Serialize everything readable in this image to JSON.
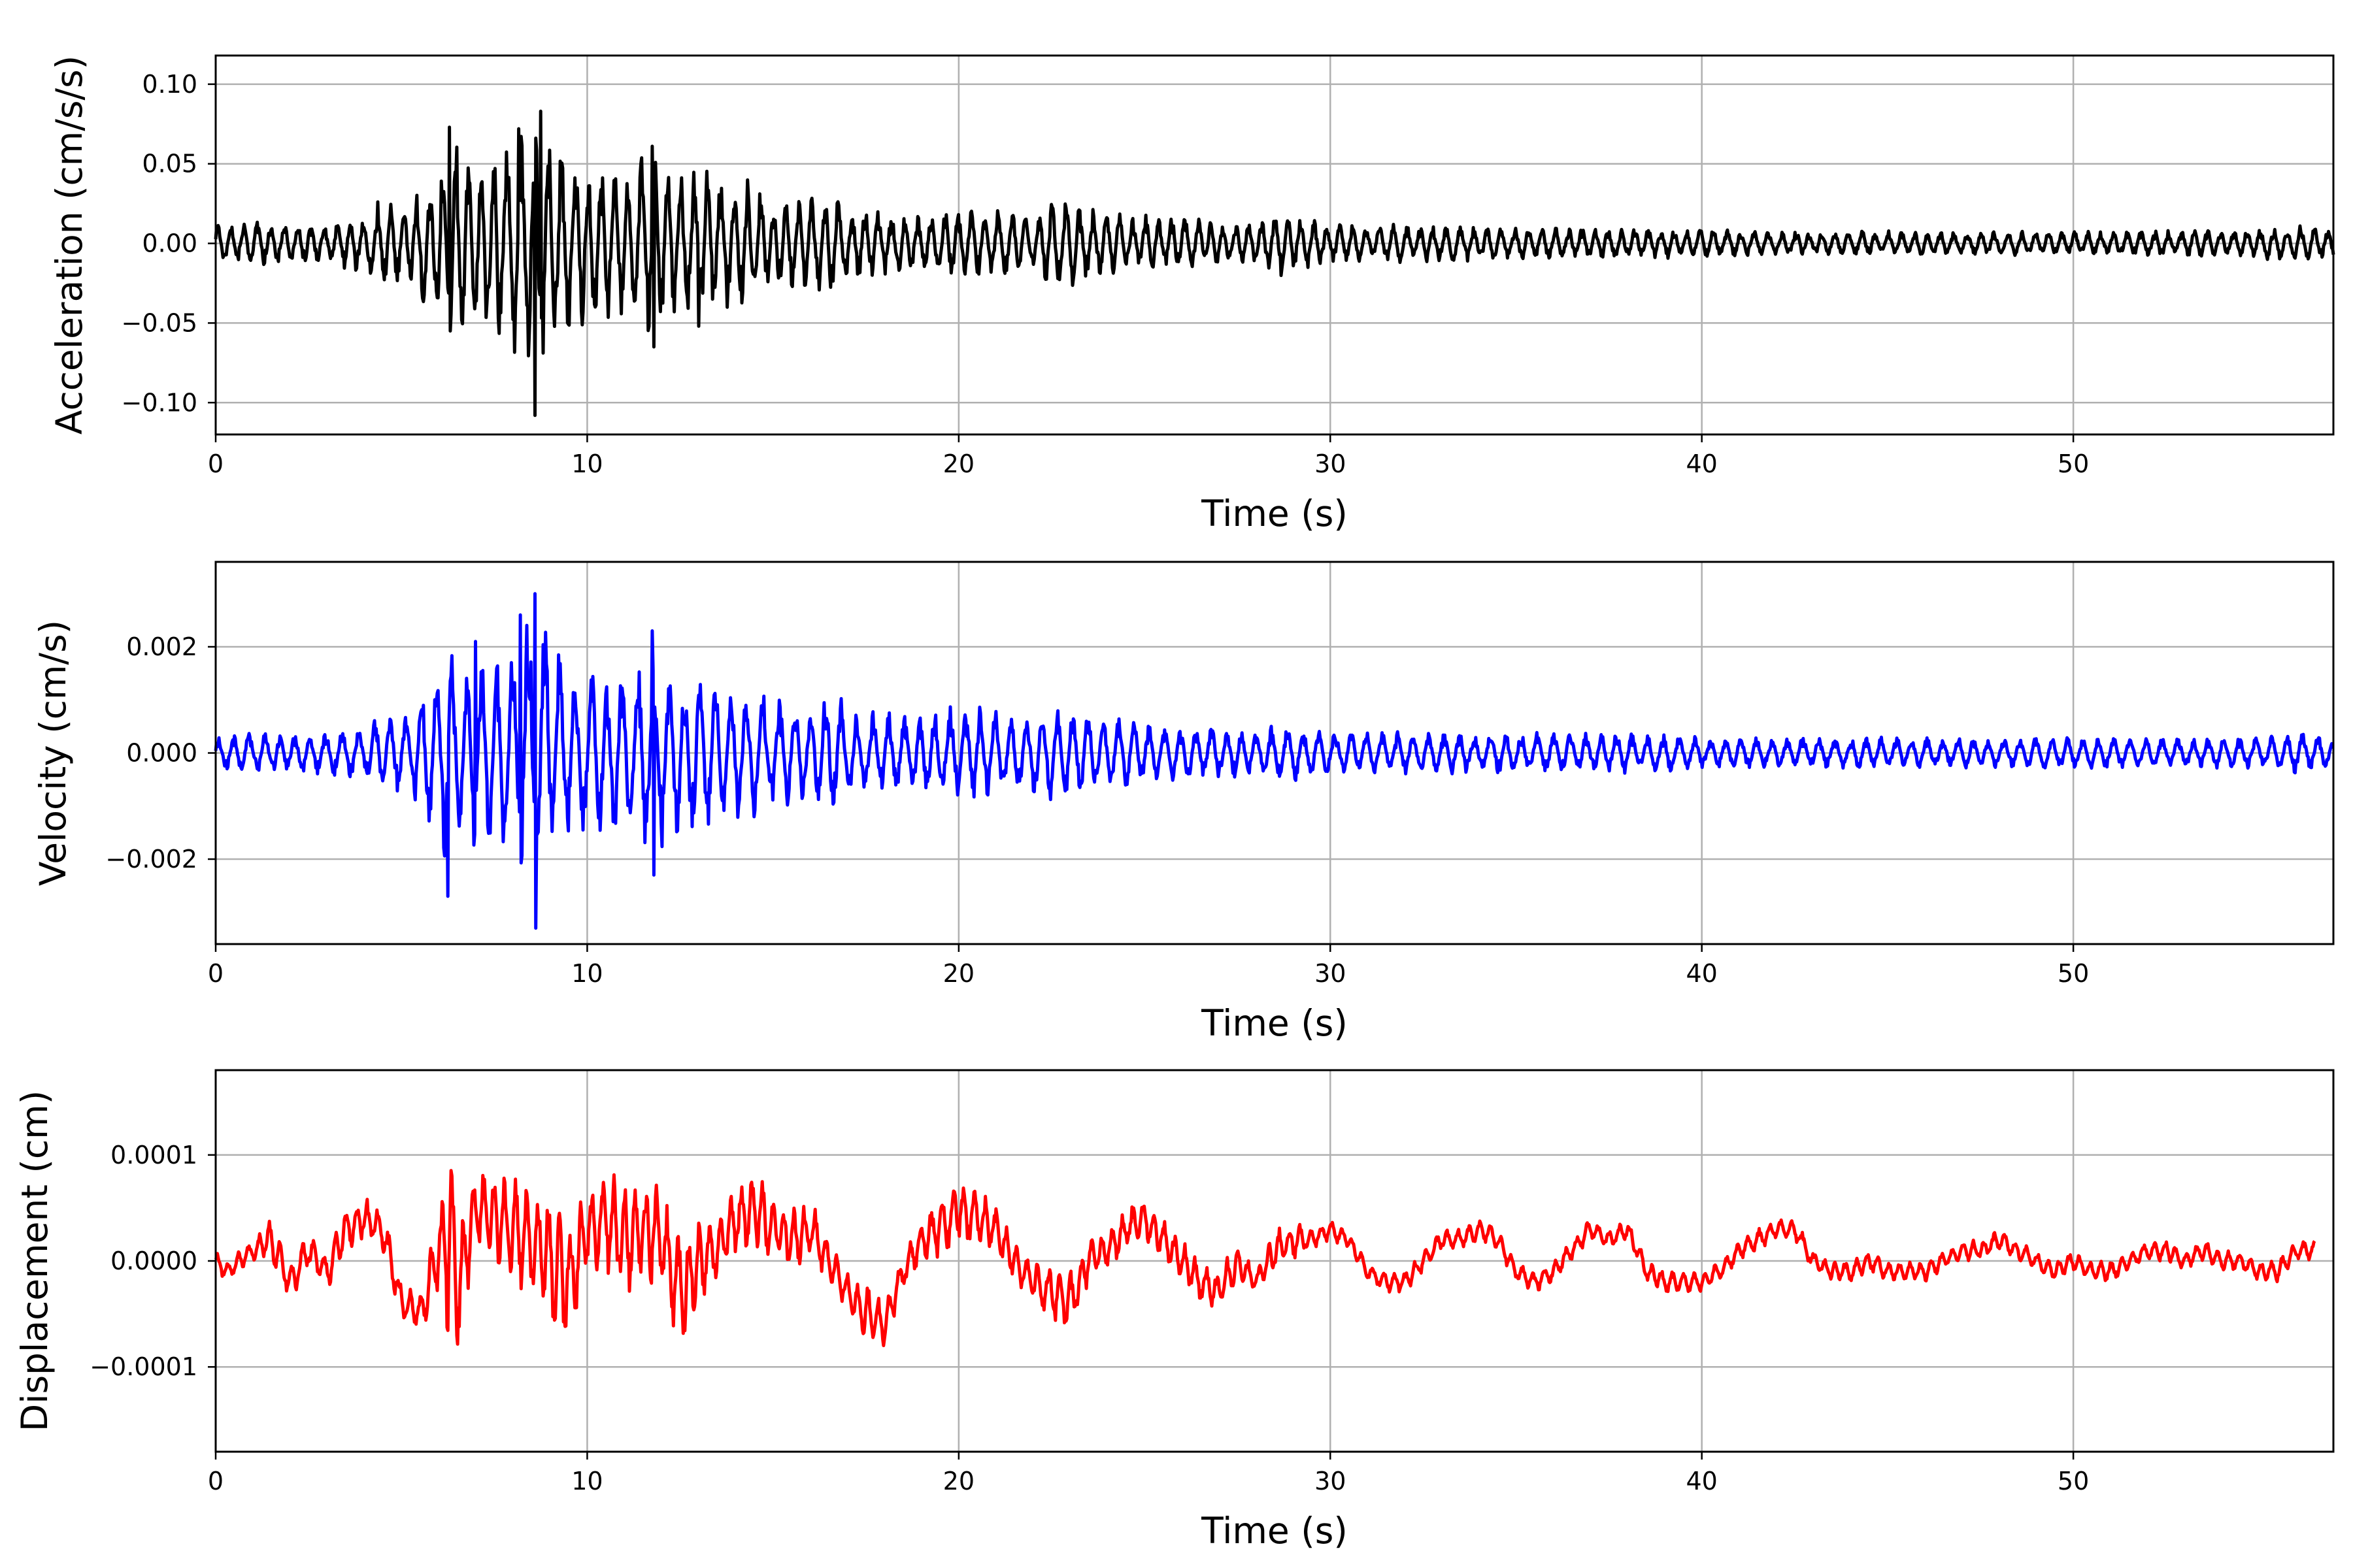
{
  "chart_data": [
    {
      "type": "line",
      "title": "",
      "xlabel": "Time (s)",
      "ylabel": "Acceleration (cm/s/s)",
      "xlim": [
        0,
        57
      ],
      "ylim": [
        -0.12,
        0.118
      ],
      "xticks": [
        0,
        10,
        20,
        30,
        40,
        50
      ],
      "xtick_labels": [
        "0",
        "10",
        "20",
        "30",
        "40",
        "50"
      ],
      "yticks": [
        -0.1,
        -0.05,
        0.0,
        0.05,
        0.1
      ],
      "ytick_labels": [
        "−0.10",
        "−0.05",
        "0.00",
        "0.05",
        "0.10"
      ],
      "grid": true,
      "series": [
        {
          "color": "#000000",
          "x": [
            0,
            1,
            2,
            3,
            4,
            4.5,
            5,
            6,
            6.3,
            6.5,
            7,
            7.5,
            8,
            8.3,
            8.6,
            9,
            9.5,
            10,
            10.5,
            11,
            11.8,
            12.5,
            13,
            14,
            14.5,
            15,
            16,
            16.5,
            17,
            18,
            19,
            20,
            21,
            22,
            22.5,
            23,
            23.5,
            24,
            25,
            26,
            27,
            28,
            28.6,
            30,
            32,
            34,
            36,
            38,
            40,
            42,
            44,
            46,
            48,
            50,
            52,
            54,
            55,
            56,
            57
          ],
          "envelope": [
            0.012,
            0.014,
            0.013,
            0.012,
            0.02,
            0.03,
            0.025,
            0.05,
            0.07,
            0.065,
            0.06,
            0.07,
            0.075,
            0.08,
            0.1,
            0.075,
            0.06,
            0.05,
            0.05,
            0.045,
            0.065,
            0.045,
            0.05,
            0.04,
            0.04,
            0.03,
            0.03,
            0.035,
            0.025,
            0.02,
            0.018,
            0.022,
            0.022,
            0.02,
            0.028,
            0.028,
            0.022,
            0.02,
            0.018,
            0.016,
            0.015,
            0.013,
            0.022,
            0.012,
            0.012,
            0.011,
            0.01,
            0.01,
            0.009,
            0.008,
            0.008,
            0.008,
            0.008,
            0.008,
            0.008,
            0.009,
            0.01,
            0.012,
            0.01
          ],
          "frequency_hz": 2.8,
          "peaks": [
            [
              6.3,
              0.073
            ],
            [
              8.15,
              0.072
            ],
            [
              8.6,
              -0.108
            ],
            [
              8.75,
              0.083
            ],
            [
              11.8,
              -0.065
            ],
            [
              11.75,
              0.061
            ],
            [
              6.3,
              -0.055
            ],
            [
              13.0,
              -0.052
            ]
          ]
        }
      ]
    },
    {
      "type": "line",
      "title": "",
      "xlabel": "Time (s)",
      "ylabel": "Velocity (cm/s)",
      "xlim": [
        0,
        57
      ],
      "ylim": [
        -0.0036,
        0.0036
      ],
      "xticks": [
        0,
        10,
        20,
        30,
        40,
        50
      ],
      "xtick_labels": [
        "0",
        "10",
        "20",
        "30",
        "40",
        "50"
      ],
      "yticks": [
        -0.002,
        0.0,
        0.002
      ],
      "ytick_labels": [
        "−0.002",
        "0.000",
        "0.002"
      ],
      "grid": true,
      "series": [
        {
          "color": "#0000ff",
          "x": [
            0,
            1,
            2,
            3,
            4,
            4.5,
            5,
            6,
            6.3,
            6.5,
            7,
            7.5,
            8,
            8.3,
            8.6,
            9,
            9.5,
            10,
            10.5,
            11,
            11.8,
            12.5,
            13,
            14,
            14.5,
            15,
            16,
            16.5,
            17,
            18,
            19,
            20,
            21,
            22,
            22.5,
            23,
            23.5,
            24,
            25,
            26,
            27,
            28,
            28.6,
            30,
            32,
            34,
            36,
            38,
            40,
            42,
            44,
            46,
            48,
            50,
            52,
            54,
            55,
            56,
            57
          ],
          "envelope": [
            0.0003,
            0.0004,
            0.0004,
            0.0004,
            0.0005,
            0.0008,
            0.0008,
            0.0015,
            0.0024,
            0.0016,
            0.0018,
            0.0019,
            0.0022,
            0.0027,
            0.0031,
            0.0022,
            0.0018,
            0.0015,
            0.0016,
            0.0015,
            0.002,
            0.0015,
            0.0016,
            0.0013,
            0.0013,
            0.0011,
            0.0011,
            0.0013,
            0.0009,
            0.0008,
            0.0008,
            0.0009,
            0.0009,
            0.0008,
            0.0009,
            0.0009,
            0.0008,
            0.0007,
            0.0006,
            0.0005,
            0.0005,
            0.0004,
            0.0006,
            0.0004,
            0.0004,
            0.0004,
            0.0004,
            0.0004,
            0.0003,
            0.0003,
            0.0003,
            0.0003,
            0.0003,
            0.0003,
            0.0003,
            0.0003,
            0.0003,
            0.0004,
            0.0003
          ],
          "frequency_hz": 2.4,
          "peaks": [
            [
              8.6,
              0.003
            ],
            [
              8.6,
              -0.0033
            ],
            [
              6.3,
              -0.0027
            ],
            [
              11.75,
              0.0023
            ],
            [
              11.8,
              -0.0023
            ],
            [
              8.2,
              0.0026
            ],
            [
              7.0,
              0.0021
            ]
          ]
        }
      ]
    },
    {
      "type": "line",
      "title": "",
      "xlabel": "Time (s)",
      "ylabel": "Displacement (cm)",
      "xlim": [
        0,
        57
      ],
      "ylim": [
        -0.00018,
        0.00018
      ],
      "xticks": [
        0,
        10,
        20,
        30,
        40,
        50
      ],
      "xtick_labels": [
        "0",
        "10",
        "20",
        "30",
        "40",
        "50"
      ],
      "yticks": [
        -0.0001,
        0.0,
        0.0001
      ],
      "ytick_labels": [
        "−0.0001",
        "0.0000",
        "0.0001"
      ],
      "grid": true,
      "series": [
        {
          "color": "#ff0000",
          "x": [
            0,
            0.3,
            1,
            1.5,
            2,
            2.5,
            3,
            3.5,
            4,
            4.5,
            5,
            5.5,
            6,
            6.3,
            6.5,
            7,
            7.5,
            8,
            8.5,
            9,
            9.5,
            10,
            10.5,
            11,
            11.5,
            12,
            12.5,
            13,
            13.5,
            14,
            14.5,
            15,
            15.5,
            16,
            16.5,
            17,
            17.5,
            18,
            18.5,
            19,
            19.5,
            20,
            20.5,
            21,
            21.5,
            22,
            22.5,
            23,
            23.5,
            24,
            24.5,
            25,
            25.5,
            26,
            26.5,
            27,
            27.5,
            28,
            28.5,
            29,
            29.5,
            30,
            30.5,
            31,
            31.5,
            32,
            32.5,
            33,
            33.5,
            34,
            34.5,
            35,
            35.5,
            36,
            36.5,
            37,
            37.5,
            38,
            38.5,
            39,
            39.5,
            40,
            40.5,
            41,
            41.5,
            42,
            42.5,
            43,
            43.5,
            44,
            44.5,
            45,
            45.5,
            46,
            46.5,
            47,
            47.5,
            48,
            48.5,
            49,
            49.5,
            50,
            50.5,
            51,
            51.5,
            52,
            52.5,
            53,
            53.5,
            54,
            54.5,
            55,
            55.5,
            56,
            56.5,
            57
          ],
          "y": [
            0.0,
            -1e-05,
            1e-05,
            2e-05,
            -2e-05,
            1e-05,
            -1e-05,
            3e-05,
            4e-05,
            3e-05,
            -4e-05,
            -5e-05,
            1e-05,
            2e-05,
            -3e-05,
            5e-05,
            4e-05,
            3e-05,
            2e-05,
            0.0,
            -2e-05,
            3e-05,
            4e-05,
            2e-05,
            3e-05,
            2e-05,
            -3e-05,
            0.0,
            1e-05,
            4e-05,
            5e-05,
            3e-05,
            2e-05,
            3e-05,
            0.0,
            -3e-05,
            -5e-05,
            -6e-05,
            -1e-05,
            2e-05,
            3e-05,
            5e-05,
            4e-05,
            3e-05,
            0.0,
            -2e-05,
            -3e-05,
            -4e-05,
            0.0,
            1e-05,
            3e-05,
            4e-05,
            2e-05,
            0.0,
            -2e-05,
            -3e-05,
            0.0,
            -2e-05,
            1e-05,
            2e-05,
            2e-05,
            3e-05,
            2e-05,
            -1e-05,
            -2e-05,
            -2e-05,
            0.0,
            2e-05,
            2e-05,
            3e-05,
            2e-05,
            -1e-05,
            -2e-05,
            -1e-05,
            1e-05,
            3e-05,
            2e-05,
            3e-05,
            -1e-05,
            -2e-05,
            -2e-05,
            -2e-05,
            -1e-05,
            1e-05,
            2e-05,
            3e-05,
            3e-05,
            0.0,
            -1e-05,
            -1e-05,
            0.0,
            -1e-05,
            -1e-05,
            -1e-05,
            0.0,
            1e-05,
            1e-05,
            2e-05,
            1e-05,
            0.0,
            -1e-05,
            0.0,
            -1e-05,
            -1e-05,
            0.0,
            1e-05,
            1e-05,
            0.0,
            1e-05,
            0.0,
            0.0,
            -1e-05,
            -1e-05,
            1e-05,
            1e-05,
            2e-05
          ],
          "envelope": [
            1e-05,
            1e-05,
            1e-05,
            2e-05,
            2e-05,
            2e-05,
            2e-05,
            2e-05,
            2e-05,
            2e-05,
            2e-05,
            2e-05,
            4e-05,
            0.00012,
            6e-05,
            4e-05,
            5e-05,
            5e-05,
            6e-05,
            7e-05,
            6e-05,
            4e-05,
            5e-05,
            6e-05,
            5e-05,
            5e-05,
            6e-05,
            4e-05,
            3e-05,
            4e-05,
            4e-05,
            3e-05,
            3e-05,
            3e-05,
            2e-05,
            2e-05,
            3e-05,
            2e-05,
            2e-05,
            2e-05,
            3e-05,
            3e-05,
            3e-05,
            2e-05,
            2e-05,
            2e-05,
            3e-05,
            3e-05,
            2e-05,
            2e-05,
            2e-05,
            2e-05,
            2e-05,
            2e-05,
            2e-05,
            2e-05,
            2e-05,
            1e-05,
            2e-05,
            2e-05,
            1e-05,
            1e-05,
            1e-05,
            1e-05,
            1e-05,
            1e-05,
            1e-05,
            1e-05,
            1e-05,
            1e-05,
            1e-05,
            1e-05,
            1e-05,
            1e-05,
            1e-05,
            1e-05,
            1e-05,
            1e-05,
            1e-05,
            1e-05,
            1e-05,
            1e-05,
            1e-05,
            1e-05,
            1e-05,
            1e-05,
            1e-05,
            1e-05,
            1e-05,
            1e-05,
            1e-05,
            1e-05,
            1e-05,
            1e-05,
            1e-05,
            1e-05,
            1e-05,
            1e-05,
            1e-05,
            1e-05,
            1e-05,
            1e-05,
            1e-05,
            1e-05,
            1e-05,
            1e-05,
            1e-05,
            1e-05,
            1e-05,
            1e-05,
            1e-05,
            1e-05,
            1e-05,
            1e-05,
            1e-05
          ],
          "frequency_hz": 3.5
        }
      ]
    }
  ]
}
